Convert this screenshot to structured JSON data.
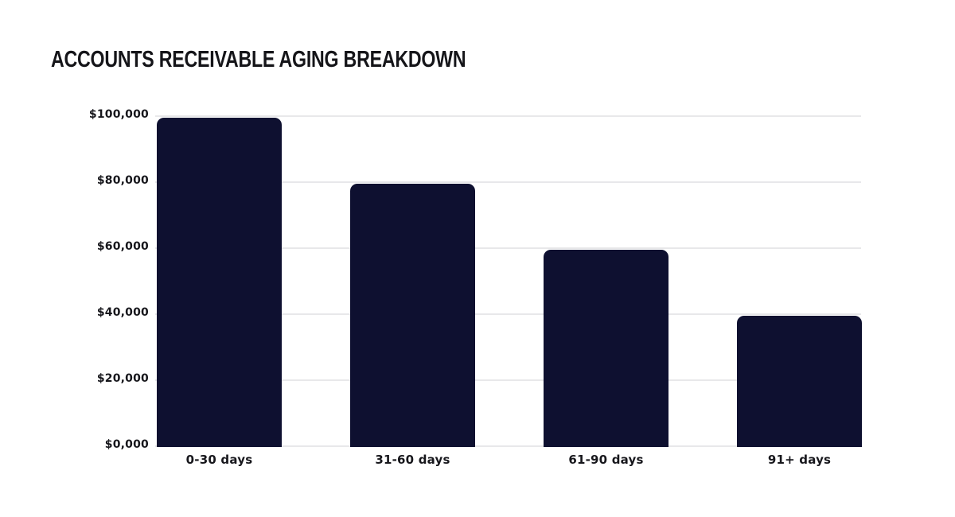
{
  "header": {
    "title": "ACCOUNTS RECEIVABLE AGING BREAKDOWN"
  },
  "chart_data": {
    "type": "bar",
    "title": "ACCOUNTS RECEIVABLE AGING BREAKDOWN",
    "categories": [
      "0-30 days",
      "31-60 days",
      "61-90 days",
      "91+ days"
    ],
    "values": [
      100000,
      80000,
      60000,
      40000
    ],
    "xlabel": "",
    "ylabel": "",
    "y_axis": {
      "tick_labels": [
        "$100,000",
        "$80,000",
        "$60,000",
        "$40,000",
        "$20,000",
        "$0,000"
      ],
      "tick_values": [
        100000,
        80000,
        60000,
        40000,
        20000,
        0
      ],
      "range": [
        0,
        100000
      ]
    },
    "grid": "horizontal-gridlines-only",
    "legend": "none",
    "colors": {
      "bar": "#0e1030",
      "gridline": "#e8e8ea",
      "title_text": "#151519",
      "label_text": "#17171c",
      "background": "#ffffff"
    }
  }
}
